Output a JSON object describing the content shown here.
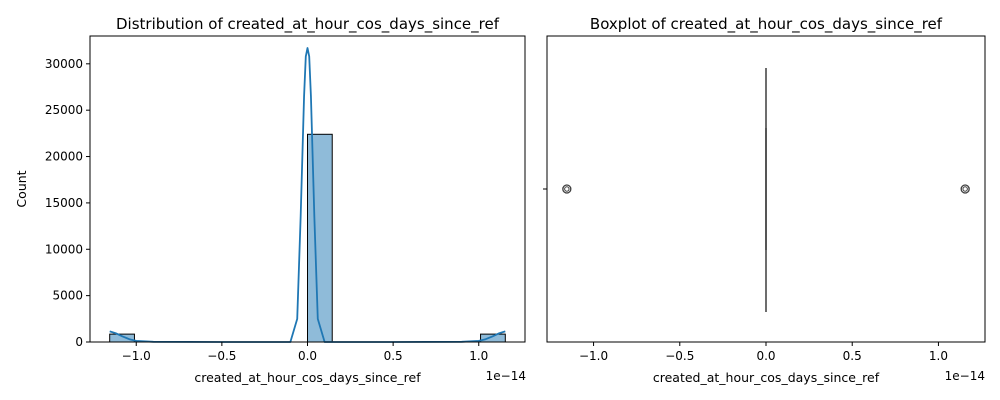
{
  "chart_data": [
    {
      "type": "histogram",
      "title": "Distribution of created_at_hour_cos_days_since_ref",
      "xlabel": "created_at_hour_cos_days_since_ref",
      "ylabel": "Count",
      "x_offset_label": "1e−14",
      "x_scale": 1e-14,
      "xlim": [
        -1.27,
        1.27
      ],
      "ylim": [
        0,
        33000
      ],
      "xticks": [
        {
          "value": -1.0,
          "label": "−1.0"
        },
        {
          "value": -0.5,
          "label": "−0.5"
        },
        {
          "value": 0.0,
          "label": "0.0"
        },
        {
          "value": 0.5,
          "label": "0.5"
        },
        {
          "value": 1.0,
          "label": "1.0"
        }
      ],
      "yticks": [
        {
          "value": 0,
          "label": "0"
        },
        {
          "value": 5000,
          "label": "5000"
        },
        {
          "value": 10000,
          "label": "10000"
        },
        {
          "value": 15000,
          "label": "15000"
        },
        {
          "value": 20000,
          "label": "20000"
        },
        {
          "value": 25000,
          "label": "25000"
        },
        {
          "value": 30000,
          "label": "30000"
        }
      ],
      "bins": [
        {
          "x0": -1.155,
          "x1": -1.0105,
          "count": 850
        },
        {
          "x0": 0.0,
          "x1": 0.1444,
          "count": 22400
        },
        {
          "x0": 1.0105,
          "x1": 1.155,
          "count": 850
        }
      ],
      "kde": {
        "x": [
          -1.155,
          -1.12,
          -1.08,
          -1.04,
          -1.0,
          -0.9,
          -0.5,
          -0.2,
          -0.1,
          -0.06,
          -0.04,
          -0.02,
          -0.01,
          0.0,
          0.01,
          0.02,
          0.04,
          0.06,
          0.1,
          0.2,
          0.5,
          0.9,
          1.0,
          1.04,
          1.08,
          1.12,
          1.155
        ],
        "y": [
          1150,
          950,
          600,
          300,
          120,
          20,
          0,
          0,
          0,
          2500,
          13500,
          26500,
          30800,
          31700,
          30800,
          26500,
          13500,
          2500,
          0,
          0,
          0,
          20,
          120,
          300,
          600,
          950,
          1150
        ]
      },
      "bar_color": "#1f77b4",
      "kde_color": "#1f77b4"
    },
    {
      "type": "boxplot",
      "title": "Boxplot of created_at_hour_cos_days_since_ref",
      "xlabel": "created_at_hour_cos_days_since_ref",
      "x_offset_label": "1e−14",
      "x_scale": 1e-14,
      "xlim": [
        -1.27,
        1.27
      ],
      "xticks": [
        {
          "value": -1.0,
          "label": "−1.0"
        },
        {
          "value": -0.5,
          "label": "−0.5"
        },
        {
          "value": 0.0,
          "label": "0.0"
        },
        {
          "value": 0.5,
          "label": "0.5"
        },
        {
          "value": 1.0,
          "label": "1.0"
        }
      ],
      "box": {
        "q1": 0.0,
        "median": 0.0,
        "q3": 0.0,
        "whisker_low": 0.0,
        "whisker_high": 0.0
      },
      "outliers": [
        -1.155,
        1.155
      ],
      "box_color": "#1f77b4"
    }
  ]
}
